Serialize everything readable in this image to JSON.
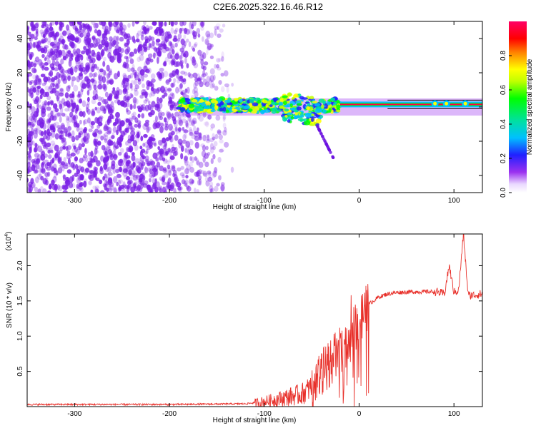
{
  "title": "C2E6.2025.322.16.46.R12",
  "colors": {
    "spectrum_points": "#7b1fe6",
    "snr_line": "#e8302a",
    "colormap": [
      "#ffffff",
      "#e9d8ff",
      "#9a30f0",
      "#2020ff",
      "#00c0ff",
      "#00e0a0",
      "#00ff00",
      "#c0ff00",
      "#ffff00",
      "#ff8000",
      "#ff0000",
      "#ff0066"
    ]
  },
  "chart_data": [
    {
      "type": "heatmap",
      "title": "C2E6.2025.322.16.46.R12",
      "xlabel": "Height of straight line (km)",
      "ylabel": "Frequency (Hz)",
      "xlim": [
        -350,
        130
      ],
      "ylim": [
        -50,
        50
      ],
      "x_ticks": [
        "-300",
        "-200",
        "-100",
        "0",
        "100"
      ],
      "y_ticks": [
        "-40",
        "-20",
        "0",
        "20",
        "40"
      ],
      "features": {
        "noise_region_x": [
          -350,
          -130
        ],
        "dense_noise_x": [
          -350,
          -195
        ],
        "signal_band_x": [
          -190,
          130
        ],
        "signal_band_y": [
          -5,
          5
        ],
        "strong_signal_x": [
          -20,
          130
        ],
        "strong_signal_freq": 1.5,
        "falling_tail": {
          "x": [
            -45,
            -27
          ],
          "y": [
            -10,
            -30
          ]
        },
        "peaks_x": [
          80,
          92,
          112
        ]
      },
      "colorbar": {
        "label": "Normalized spectral amplitude",
        "range": [
          0,
          1
        ],
        "ticks": [
          "0.0",
          "0.2",
          "0.4",
          "0.6",
          "0.8"
        ]
      }
    },
    {
      "type": "line",
      "xlabel": "Height of straight line (km)",
      "ylabel": "SNR (10 * v/v)",
      "scale_label": "(x10",
      "scale_exp": "4",
      "xlim": [
        -350,
        130
      ],
      "ylim": [
        0.0,
        2.45
      ],
      "x_ticks": [
        "-300",
        "-200",
        "-100",
        "0",
        "100"
      ],
      "y_ticks": [
        "0.5",
        "1.0",
        "1.5",
        "2.0"
      ],
      "series": [
        {
          "x": [
            -350,
            -200,
            -120,
            -100,
            -80,
            -60,
            -50,
            -40,
            -30,
            -20,
            -10,
            0,
            10,
            20,
            30,
            40,
            60,
            80,
            90,
            95,
            100,
            105,
            110,
            115,
            120,
            130
          ],
          "y": [
            0.03,
            0.03,
            0.04,
            0.07,
            0.12,
            0.18,
            0.28,
            0.45,
            0.65,
            0.78,
            0.95,
            1.22,
            1.45,
            1.55,
            1.6,
            1.62,
            1.63,
            1.63,
            1.6,
            2.0,
            1.62,
            1.65,
            2.45,
            1.58,
            1.58,
            1.6
          ]
        }
      ]
    }
  ]
}
